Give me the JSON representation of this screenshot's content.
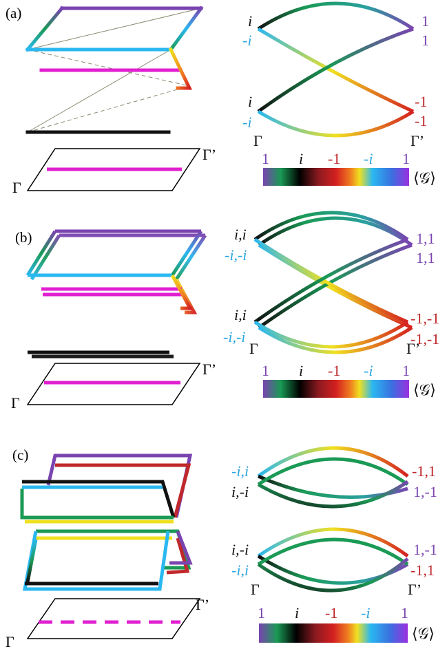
{
  "colors": {
    "one": "#7a44b0",
    "i": "#111111",
    "minus_one": "#c0282b",
    "minus_i": "#2aa6e0",
    "magenta": "#e020d0",
    "green": "#1a9a55",
    "yellow": "#f0e020",
    "orange": "#f08020"
  },
  "panels": [
    {
      "label": "(a)",
      "band_labels": {
        "left_top": [
          "i",
          "-i"
        ],
        "left_bottom": [
          "i",
          "-i"
        ],
        "right_top": [
          "1",
          "1"
        ],
        "right_bottom": [
          "-1",
          "-1"
        ]
      },
      "k_start": "Γ",
      "k_end": "Γ’"
    },
    {
      "label": "(b)",
      "band_labels": {
        "left_top": [
          "i,i",
          "-i,-i"
        ],
        "left_bottom": [
          "i,i",
          "-i,-i"
        ],
        "right_top": [
          "1,1",
          "1,1"
        ],
        "right_bottom": [
          "-1,-1",
          "-1,-1"
        ]
      },
      "k_start": "Γ",
      "k_end": "Γ’"
    },
    {
      "label": "(c)",
      "band_labels": {
        "left_top": [
          "-i,i",
          "i,-i"
        ],
        "left_bottom": [
          "i,-i",
          "-i,i"
        ],
        "right_top": [
          "-1,1",
          "1,-1"
        ],
        "right_bottom": [
          "1,-1",
          "-1,1"
        ]
      },
      "k_start": "Γ",
      "k_end": "Γ’"
    }
  ],
  "colorbar": {
    "ticks": [
      "1",
      "i",
      "-1",
      "-i",
      "1"
    ],
    "symbol": "⟨𝒢⟩"
  }
}
